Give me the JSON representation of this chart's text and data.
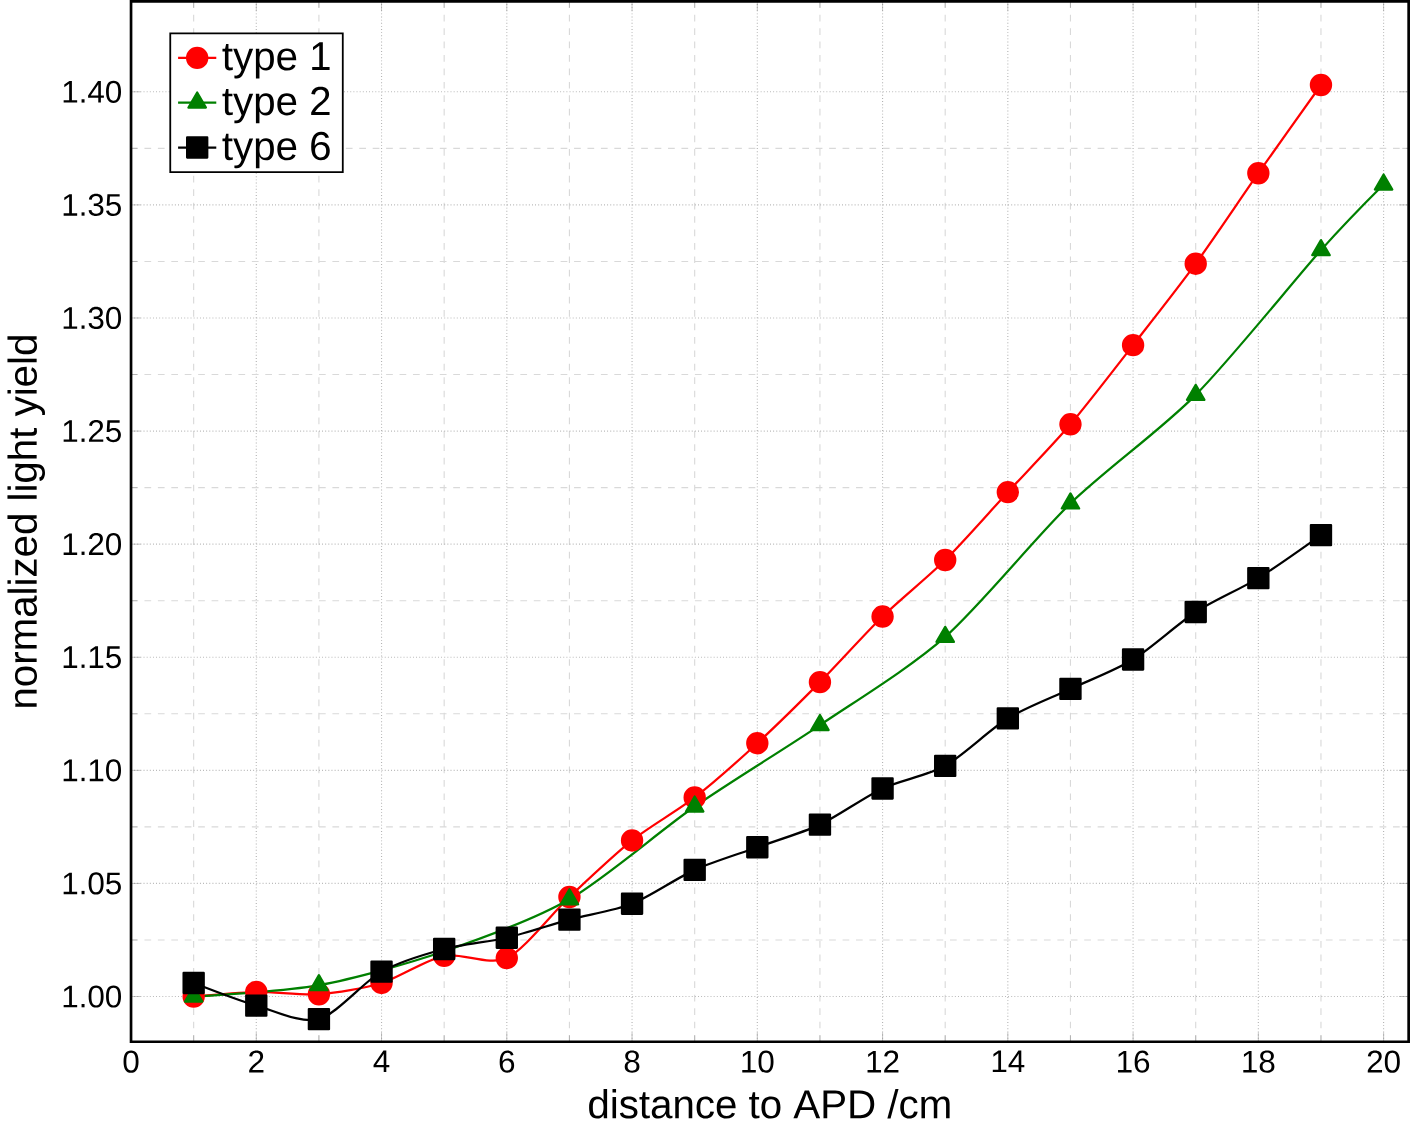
{
  "chart_data": {
    "type": "line",
    "xlabel": "distance to APD /cm",
    "ylabel": "normalized light yield",
    "xlim": [
      0,
      20.4
    ],
    "ylim": [
      0.98,
      1.44
    ],
    "xticks": [
      0,
      2,
      4,
      6,
      8,
      10,
      12,
      14,
      16,
      18,
      20
    ],
    "yticks": [
      {
        "value": 1.0,
        "label": "1.00"
      },
      {
        "value": 1.05,
        "label": "1.05"
      },
      {
        "value": 1.1,
        "label": "1.10"
      },
      {
        "value": 1.15,
        "label": "1.15"
      },
      {
        "value": 1.2,
        "label": "1.20"
      },
      {
        "value": 1.25,
        "label": "1.25"
      },
      {
        "value": 1.3,
        "label": "1.30"
      },
      {
        "value": 1.35,
        "label": "1.35"
      },
      {
        "value": 1.4,
        "label": "1.40"
      }
    ],
    "grid": true,
    "legend": "top left",
    "line_style": "solid",
    "series": [
      {
        "name": "type 1",
        "color": "#ff0000",
        "marker": "circle",
        "x": [
          1,
          2,
          3,
          4,
          5,
          6,
          7,
          8,
          9,
          10,
          11,
          12,
          13,
          14,
          15,
          16,
          17,
          18,
          19
        ],
        "values": [
          1.0,
          1.002,
          1.001,
          1.006,
          1.018,
          1.017,
          1.044,
          1.069,
          1.088,
          1.112,
          1.139,
          1.168,
          1.193,
          1.223,
          1.253,
          1.288,
          1.324,
          1.364,
          1.403
        ]
      },
      {
        "name": "type 2",
        "color": "#008000",
        "marker": "triangle",
        "x": [
          1,
          3,
          5,
          7,
          9,
          11,
          13,
          15,
          17,
          19,
          20
        ],
        "values": [
          1.0,
          1.005,
          1.02,
          1.043,
          1.084,
          1.12,
          1.159,
          1.218,
          1.266,
          1.33,
          1.359
        ]
      },
      {
        "name": "type 6",
        "color": "#000000",
        "marker": "square",
        "x": [
          1,
          2,
          3,
          4,
          5,
          6,
          7,
          8,
          9,
          10,
          11,
          12,
          13,
          14,
          15,
          16,
          17,
          18,
          19
        ],
        "values": [
          1.006,
          0.996,
          0.99,
          1.011,
          1.021,
          1.026,
          1.034,
          1.041,
          1.056,
          1.066,
          1.076,
          1.092,
          1.102,
          1.123,
          1.136,
          1.149,
          1.17,
          1.185,
          1.204
        ]
      }
    ]
  }
}
